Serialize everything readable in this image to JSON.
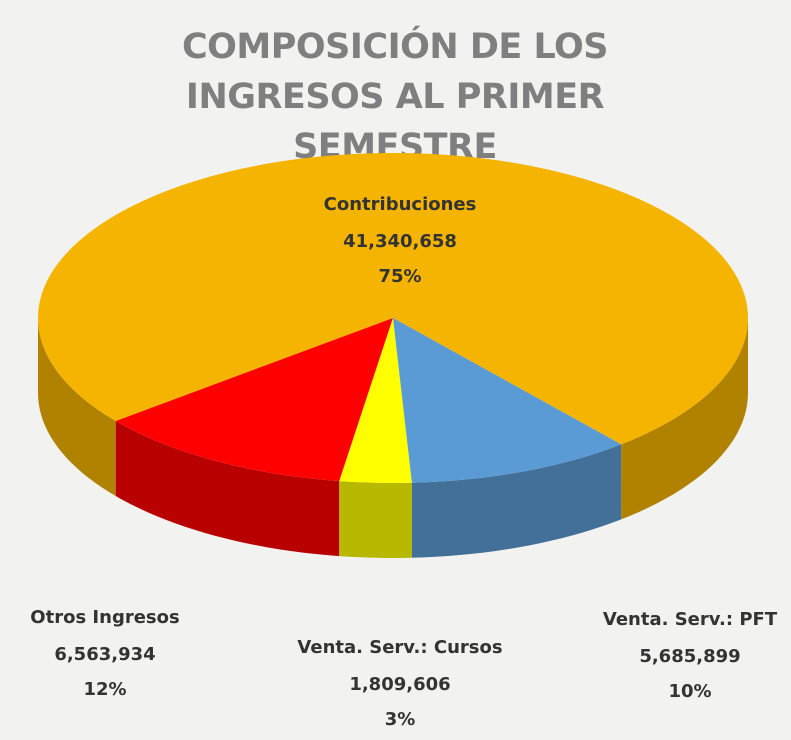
{
  "chart_data": {
    "type": "pie",
    "title": "COMPOSICIÓN DE LOS INGRESOS AL PRIMER SEMESTRE",
    "categories": [
      "Contribuciones",
      "Otros Ingresos",
      "Venta. Serv.: Cursos",
      "Venta. Serv.: PFT"
    ],
    "values": [
      41340658,
      6563934,
      1809606,
      5685899
    ],
    "value_labels": [
      "41,340,658",
      "6,563,934",
      "1,809,606",
      "5,685,899"
    ],
    "percentages": [
      75,
      12,
      3,
      10
    ],
    "percentage_labels": [
      "75%",
      "12%",
      "3%",
      "10%"
    ],
    "colors": [
      "#f5b400",
      "#ff0000",
      "#ffff00",
      "#5b9bd5"
    ]
  }
}
